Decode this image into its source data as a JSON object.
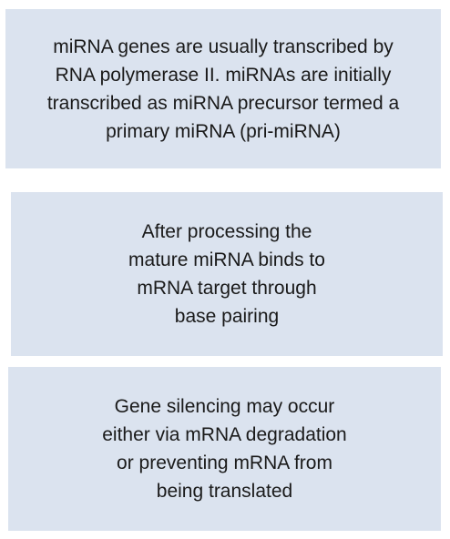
{
  "boxes": [
    {
      "lines": [
        "miRNA genes are usually transcribed by",
        "RNA polymerase II. miRNAs are initially",
        "transcribed as miRNA precursor termed a",
        "primary miRNA (pri-miRNA)"
      ]
    },
    {
      "lines": [
        "After processing the",
        "mature miRNA binds to",
        "mRNA target through",
        "base pairing"
      ]
    },
    {
      "lines": [
        "Gene silencing may occur",
        "either via mRNA degradation",
        "or preventing mRNA from",
        "being translated"
      ]
    }
  ],
  "colors": {
    "box_fill": "#dbe3ef",
    "text": "#1a1a1a",
    "background": "#ffffff"
  }
}
